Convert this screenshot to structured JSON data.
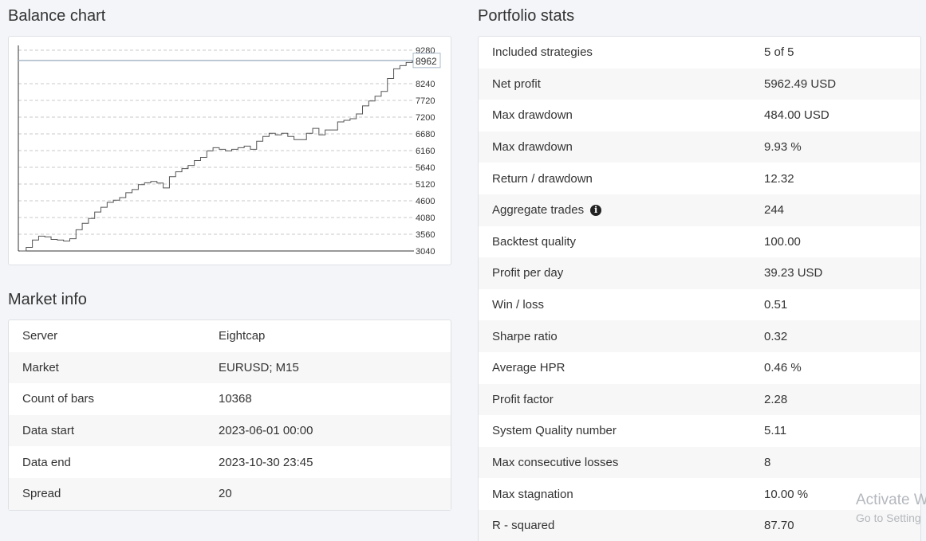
{
  "balance_chart": {
    "title": "Balance chart"
  },
  "chart_data": {
    "type": "line",
    "title": "Balance chart",
    "y_ticks": [
      9280,
      8240,
      7720,
      7200,
      6680,
      6160,
      5640,
      5120,
      4600,
      4080,
      3560,
      3040
    ],
    "ylim": [
      3040,
      9280
    ],
    "last_value_label": "8962",
    "last_value": 8962,
    "grid": true,
    "series": [
      {
        "values": [
          3040,
          3150,
          3380,
          3500,
          3480,
          3400,
          3380,
          3350,
          3420,
          3700,
          3900,
          4050,
          4250,
          4400,
          4550,
          4620,
          4700,
          4850,
          4950,
          5100,
          5160,
          5200,
          5150,
          5000,
          5350,
          5500,
          5600,
          5700,
          5850,
          5950,
          6150,
          6250,
          6200,
          6150,
          6200,
          6250,
          6300,
          6200,
          6450,
          6600,
          6700,
          6650,
          6700,
          6600,
          6500,
          6500,
          6700,
          6850,
          6650,
          6800,
          6800,
          7050,
          7100,
          7150,
          7300,
          7550,
          7700,
          7850,
          8000,
          8400,
          8700,
          8800,
          8900,
          8962
        ]
      }
    ]
  },
  "market_info": {
    "title": "Market info",
    "rows": [
      {
        "label": "Server",
        "value": "Eightcap"
      },
      {
        "label": "Market",
        "value": "EURUSD; M15"
      },
      {
        "label": "Count of bars",
        "value": "10368"
      },
      {
        "label": "Data start",
        "value": "2023-06-01 00:00"
      },
      {
        "label": "Data end",
        "value": "2023-10-30 23:45"
      },
      {
        "label": "Spread",
        "value": "20"
      }
    ]
  },
  "portfolio_stats": {
    "title": "Portfolio stats",
    "rows": [
      {
        "label": "Included strategies",
        "value": "5 of 5"
      },
      {
        "label": "Net profit",
        "value": "5962.49 USD"
      },
      {
        "label": "Max drawdown",
        "value": "484.00 USD"
      },
      {
        "label": "Max drawdown",
        "value": "9.93 %"
      },
      {
        "label": "Return / drawdown",
        "value": "12.32"
      },
      {
        "label": "Aggregate trades",
        "value": "244",
        "info_icon": "info-icon"
      },
      {
        "label": "Backtest quality",
        "value": "100.00"
      },
      {
        "label": "Profit per day",
        "value": "39.23 USD"
      },
      {
        "label": "Win / loss",
        "value": "0.51"
      },
      {
        "label": "Sharpe ratio",
        "value": "0.32"
      },
      {
        "label": "Average HPR",
        "value": "0.46 %"
      },
      {
        "label": "Profit factor",
        "value": "2.28"
      },
      {
        "label": "System Quality number",
        "value": "5.11"
      },
      {
        "label": "Max consecutive losses",
        "value": "8"
      },
      {
        "label": "Max stagnation",
        "value": "10.00 %"
      },
      {
        "label": "R - squared",
        "value": "87.70"
      }
    ]
  },
  "watermark": {
    "line1": "Activate W",
    "line2": "Go to Setting"
  }
}
